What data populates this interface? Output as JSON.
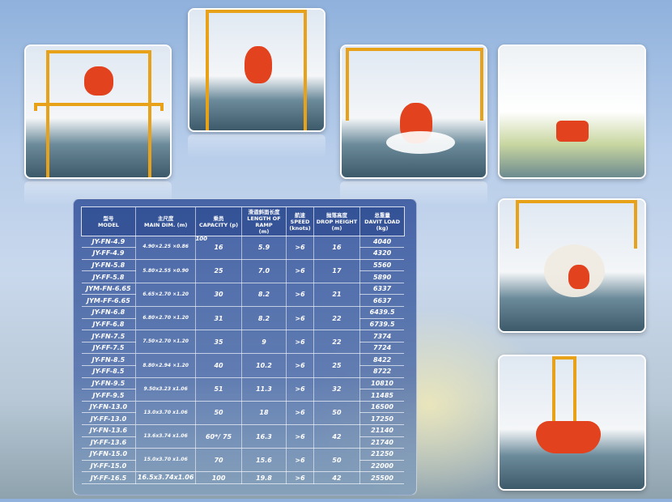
{
  "colors": {
    "accent": "#e8a21a",
    "boat": "#e2421d",
    "panel": "#3c5aa0"
  },
  "table": {
    "headers": [
      {
        "zh": "型号",
        "en": "MODEL",
        "unit": ""
      },
      {
        "zh": "主尺度",
        "en": "MAIN DIM. (m)",
        "unit": ""
      },
      {
        "zh": "乘员",
        "en": "CAPACITY (p)",
        "unit": ""
      },
      {
        "zh": "滑道斜面长度",
        "en": "LENGTH OF RAMP",
        "unit": "(m)"
      },
      {
        "zh": "航速",
        "en": "SPEED",
        "unit": "(knots)"
      },
      {
        "zh": "抛落高度",
        "en": "DROP HEIGHT",
        "unit": "(m)"
      },
      {
        "zh": "总重量",
        "en": "DAVIT LOAD",
        "unit": "(kg)"
      }
    ],
    "groups": [
      {
        "models": [
          "JY-FN-4.9",
          "JY-FF-4.9"
        ],
        "dim": "4.90×2.25 ×0.86",
        "capacity": "16",
        "note": "100",
        "ramp": "5.9",
        "speed": ">6",
        "drop": "16",
        "loads": [
          "4040",
          "4320"
        ]
      },
      {
        "models": [
          "JY-FN-5.8",
          "JY-FF-5.8"
        ],
        "dim": "5.80×2.55 ×0.90",
        "capacity": "25",
        "ramp": "7.0",
        "speed": ">6",
        "drop": "17",
        "loads": [
          "5560",
          "5890"
        ]
      },
      {
        "models": [
          "JYM-FN-6.65",
          "JYM-FF-6.65"
        ],
        "dim": "6.65×2.70 ×1.20",
        "capacity": "30",
        "ramp": "8.2",
        "speed": ">6",
        "drop": "21",
        "loads": [
          "6337",
          "6637"
        ]
      },
      {
        "models": [
          "JY-FN-6.8",
          "JY-FF-6.8"
        ],
        "dim": "6.80×2.70 ×1.20",
        "capacity": "31",
        "ramp": "8.2",
        "speed": ">6",
        "drop": "22",
        "loads": [
          "6439.5",
          "6739.5"
        ]
      },
      {
        "models": [
          "JY-FN-7.5",
          "JY-FF-7.5"
        ],
        "dim": "7.50×2.70 ×1.20",
        "capacity": "35",
        "ramp": "9",
        "speed": ">6",
        "drop": "22",
        "loads": [
          "7374",
          "7724"
        ]
      },
      {
        "models": [
          "JY-FN-8.5",
          "JY-FF-8.5"
        ],
        "dim": "8.80×2.94 ×1.20",
        "capacity": "40",
        "ramp": "10.2",
        "speed": ">6",
        "drop": "25",
        "loads": [
          "8422",
          "8722"
        ]
      },
      {
        "models": [
          "JY-FN-9.5",
          "JY-FF-9.5"
        ],
        "dim": "9.50x3.23 x1.06",
        "capacity": "51",
        "ramp": "11.3",
        "speed": ">6",
        "drop": "32",
        "loads": [
          "10810",
          "11485"
        ]
      },
      {
        "models": [
          "JY-FN-13.0",
          "JY-FF-13.0"
        ],
        "dim": "13.0x3.70 x1.06",
        "capacity": "50",
        "ramp": "18",
        "speed": ">6",
        "drop": "50",
        "loads": [
          "16500",
          "17250"
        ]
      },
      {
        "models": [
          "JY-FN-13.6",
          "JY-FF-13.6"
        ],
        "dim": "13.6x3.74 x1.06",
        "capacity": "60*/ 75",
        "ramp": "16.3",
        "speed": ">6",
        "drop": "42",
        "loads": [
          "21140",
          "21740"
        ]
      },
      {
        "models": [
          "JY-FN-15.0",
          "JY-FF-15.0"
        ],
        "dim": "15.0x3.70 x1.06",
        "capacity": "70",
        "ramp": "15.6",
        "speed": ">6",
        "drop": "50",
        "loads": [
          "21250",
          "22000"
        ]
      },
      {
        "models": [
          "JY-FF-16.5"
        ],
        "dim": "16.5x3.74x1.06",
        "capacity": "100",
        "ramp": "19.8",
        "speed": ">6",
        "drop": "42",
        "loads": [
          "25500"
        ]
      }
    ]
  }
}
